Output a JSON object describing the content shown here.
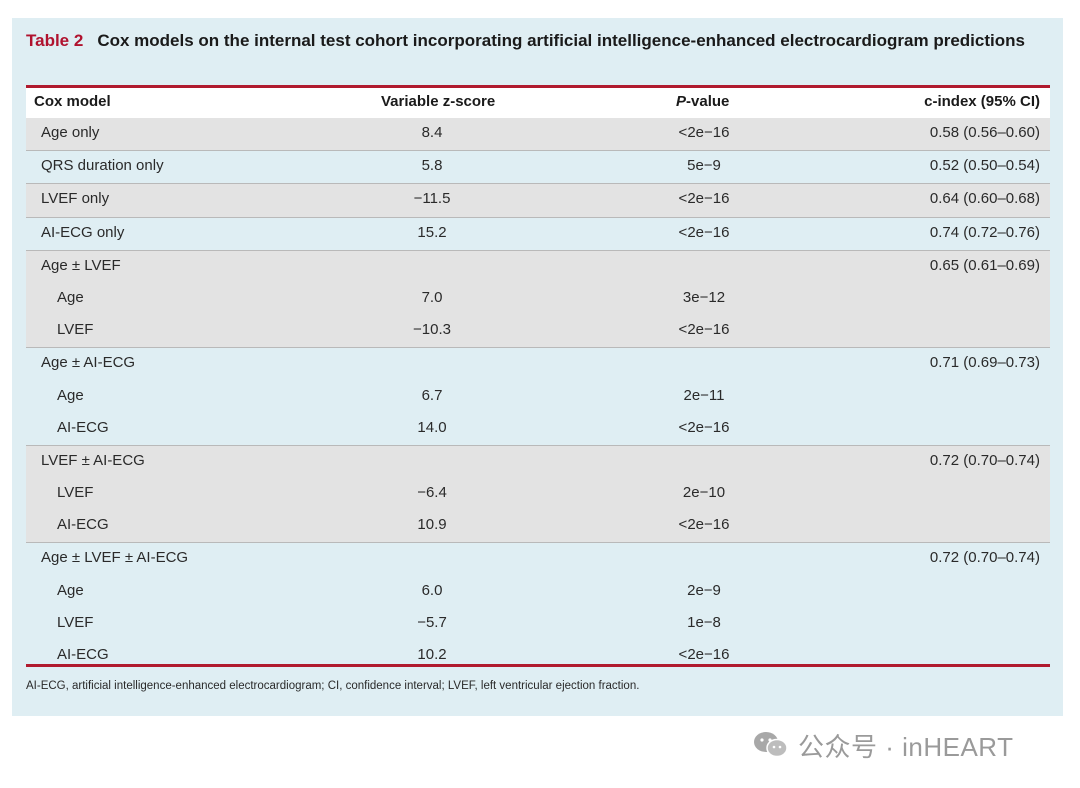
{
  "caption": {
    "label": "Table 2",
    "title": "Cox models on the internal test cohort incorporating artificial intelligence-enhanced electrocardiogram predictions"
  },
  "columns": [
    "Cox model",
    "Variable z-score",
    "P-value",
    "c-index (95% CI)"
  ],
  "rows": [
    {
      "model": "Age only",
      "z": "8.4",
      "p": "<2e−16",
      "cindex": "0.58 (0.56–0.60)"
    },
    {
      "model": "QRS duration only",
      "z": "5.8",
      "p": "5e−9",
      "cindex": "0.52 (0.50–0.54)"
    },
    {
      "model": "LVEF only",
      "z": "−11.5",
      "p": "<2e−16",
      "cindex": "0.64 (0.60–0.68)"
    },
    {
      "model": "AI-ECG only",
      "z": "15.2",
      "p": "<2e−16",
      "cindex": "0.74 (0.72–0.76)"
    },
    {
      "model": "Age ± LVEF",
      "z": "",
      "p": "",
      "cindex": "0.65 (0.61–0.69)"
    },
    {
      "model": "Age",
      "z": "7.0",
      "p": "3e−12",
      "cindex": ""
    },
    {
      "model": "LVEF",
      "z": "−10.3",
      "p": "<2e−16",
      "cindex": ""
    },
    {
      "model": "Age ± AI-ECG",
      "z": "",
      "p": "",
      "cindex": "0.71 (0.69–0.73)"
    },
    {
      "model": "Age",
      "z": "6.7",
      "p": "2e−11",
      "cindex": ""
    },
    {
      "model": "AI-ECG",
      "z": "14.0",
      "p": "<2e−16",
      "cindex": ""
    },
    {
      "model": "LVEF ± AI-ECG",
      "z": "",
      "p": "",
      "cindex": "0.72 (0.70–0.74)"
    },
    {
      "model": "LVEF",
      "z": "−6.4",
      "p": "2e−10",
      "cindex": ""
    },
    {
      "model": "AI-ECG",
      "z": "10.9",
      "p": "<2e−16",
      "cindex": ""
    },
    {
      "model": "Age ± LVEF ± AI-ECG",
      "z": "",
      "p": "",
      "cindex": "0.72 (0.70–0.74)"
    },
    {
      "model": "Age",
      "z": "6.0",
      "p": "2e−9",
      "cindex": ""
    },
    {
      "model": "LVEF",
      "z": "−5.7",
      "p": "1e−8",
      "cindex": ""
    },
    {
      "model": "AI-ECG",
      "z": "10.2",
      "p": "<2e−16",
      "cindex": ""
    }
  ],
  "footnote": "AI-ECG, artificial intelligence-enhanced electrocardiogram; CI, confidence interval; LVEF, left ventricular ejection fraction.",
  "watermark": {
    "text": "公众号 · inHEART",
    "icon": "wechat-icon"
  },
  "colors": {
    "accent": "#b01a2e",
    "panel": "#dfeef3",
    "shade": "#e3e3e3"
  }
}
